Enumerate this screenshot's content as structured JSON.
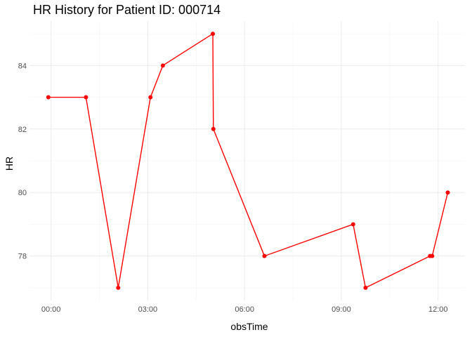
{
  "chart_data": {
    "type": "line",
    "title": "HR History for Patient ID: 000714",
    "xlabel": "obsTime",
    "ylabel": "HR",
    "x_axis": {
      "ticks": [
        0,
        180,
        360,
        540,
        720
      ],
      "tick_labels": [
        "00:00",
        "03:00",
        "06:00",
        "09:00",
        "12:00"
      ],
      "range": [
        -40,
        770
      ]
    },
    "y_axis": {
      "ticks": [
        78,
        80,
        82,
        84
      ],
      "tick_labels": [
        "78",
        "80",
        "82",
        "84"
      ],
      "range": [
        76.6,
        85.4
      ]
    },
    "grid": true,
    "legend": "none",
    "series": [
      {
        "color": "#ff0000",
        "points": [
          {
            "x": -5,
            "y": 83
          },
          {
            "x": 65,
            "y": 83
          },
          {
            "x": 125,
            "y": 77
          },
          {
            "x": 185,
            "y": 83
          },
          {
            "x": 208,
            "y": 84
          },
          {
            "x": 301,
            "y": 85
          },
          {
            "x": 302,
            "y": 82
          },
          {
            "x": 397,
            "y": 78
          },
          {
            "x": 562,
            "y": 79
          },
          {
            "x": 585,
            "y": 77
          },
          {
            "x": 705,
            "y": 78
          },
          {
            "x": 709,
            "y": 78
          },
          {
            "x": 738,
            "y": 80
          }
        ]
      }
    ]
  }
}
